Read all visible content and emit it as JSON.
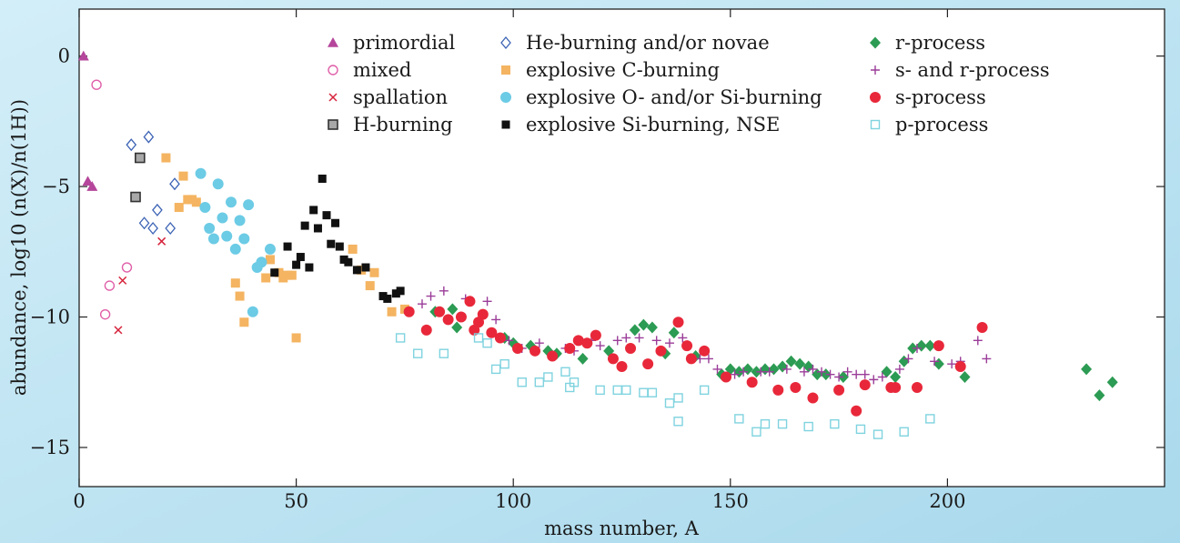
{
  "chart_data": {
    "type": "scatter",
    "title": "",
    "xlabel": "mass number, A",
    "ylabel": "abundance, log10 (n(X)/n(1H))",
    "xlim": [
      0,
      250
    ],
    "ylim": [
      -16.5,
      1.8
    ],
    "x_ticks": [
      0,
      50,
      100,
      150,
      200
    ],
    "y_ticks": [
      0,
      -5,
      -10,
      -15
    ],
    "x_tick_labels": [
      "0",
      "50",
      "100",
      "150",
      "200"
    ],
    "y_tick_labels": [
      "0",
      "−5",
      "−10",
      "−15"
    ],
    "grid": false,
    "legend_position": "top",
    "series": [
      {
        "name": "primordial",
        "marker": "triangle",
        "color": "#b5469b",
        "points": [
          [
            1,
            0
          ],
          [
            2,
            -4.8
          ],
          [
            3,
            -5.0
          ]
        ]
      },
      {
        "name": "mixed",
        "marker": "circle-open",
        "color": "#e05fa8",
        "points": [
          [
            4,
            -1.1
          ],
          [
            6,
            -9.9
          ],
          [
            7,
            -8.8
          ],
          [
            11,
            -8.1
          ]
        ]
      },
      {
        "name": "spallation",
        "marker": "x",
        "color": "#d6233b",
        "points": [
          [
            9,
            -10.5
          ],
          [
            10,
            -8.6
          ],
          [
            19,
            -7.1
          ]
        ]
      },
      {
        "name": "H-burning",
        "marker": "square-open-gray",
        "color": "#333333",
        "points": [
          [
            13,
            -5.4
          ],
          [
            14,
            -3.9
          ]
        ]
      },
      {
        "name": "He-burning and/or novae",
        "marker": "diamond-open",
        "color": "#3c63b5",
        "points": [
          [
            12,
            -3.4
          ],
          [
            15,
            -6.4
          ],
          [
            16,
            -3.1
          ],
          [
            17,
            -6.6
          ],
          [
            18,
            -5.9
          ],
          [
            21,
            -6.6
          ],
          [
            22,
            -4.9
          ]
        ]
      },
      {
        "name": "explosive C-burning",
        "marker": "square",
        "color": "#f4b461",
        "points": [
          [
            20,
            -3.9
          ],
          [
            23,
            -5.8
          ],
          [
            24,
            -4.6
          ],
          [
            25,
            -5.5
          ],
          [
            26,
            -5.5
          ],
          [
            27,
            -5.6
          ],
          [
            36,
            -8.7
          ],
          [
            37,
            -9.2
          ],
          [
            38,
            -10.2
          ],
          [
            43,
            -8.5
          ],
          [
            44,
            -7.8
          ],
          [
            46,
            -8.3
          ],
          [
            47,
            -8.5
          ],
          [
            48,
            -8.4
          ],
          [
            49,
            -8.4
          ],
          [
            50,
            -10.8
          ],
          [
            63,
            -7.4
          ],
          [
            65,
            -8.2
          ],
          [
            67,
            -8.8
          ],
          [
            68,
            -8.3
          ],
          [
            72,
            -9.8
          ],
          [
            75,
            -9.7
          ]
        ]
      },
      {
        "name": "explosive O- and/or Si-burning",
        "marker": "circle",
        "color": "#6ccbe5",
        "points": [
          [
            28,
            -4.5
          ],
          [
            29,
            -5.8
          ],
          [
            30,
            -6.6
          ],
          [
            31,
            -7.0
          ],
          [
            32,
            -4.9
          ],
          [
            33,
            -6.2
          ],
          [
            34,
            -6.9
          ],
          [
            35,
            -5.6
          ],
          [
            36,
            -7.4
          ],
          [
            37,
            -6.3
          ],
          [
            38,
            -7.0
          ],
          [
            39,
            -5.7
          ],
          [
            40,
            -9.8
          ],
          [
            41,
            -8.1
          ],
          [
            42,
            -7.9
          ],
          [
            44,
            -7.4
          ]
        ]
      },
      {
        "name": "explosive Si-burning, NSE",
        "marker": "square-black",
        "color": "#111111",
        "points": [
          [
            45,
            -8.3
          ],
          [
            48,
            -7.3
          ],
          [
            50,
            -8.0
          ],
          [
            51,
            -7.7
          ],
          [
            52,
            -6.5
          ],
          [
            53,
            -8.1
          ],
          [
            54,
            -5.9
          ],
          [
            55,
            -6.6
          ],
          [
            56,
            -4.7
          ],
          [
            57,
            -6.1
          ],
          [
            58,
            -7.2
          ],
          [
            59,
            -6.4
          ],
          [
            60,
            -7.3
          ],
          [
            61,
            -7.8
          ],
          [
            62,
            -7.9
          ],
          [
            64,
            -8.2
          ],
          [
            66,
            -8.1
          ],
          [
            70,
            -9.2
          ],
          [
            71,
            -9.3
          ],
          [
            73,
            -9.1
          ],
          [
            74,
            -9.0
          ]
        ]
      },
      {
        "name": "r-process",
        "marker": "diamond",
        "color": "#2c9b53",
        "points": [
          [
            82,
            -9.8
          ],
          [
            86,
            -9.7
          ],
          [
            87,
            -10.4
          ],
          [
            98,
            -10.8
          ],
          [
            100,
            -11.0
          ],
          [
            104,
            -11.1
          ],
          [
            108,
            -11.3
          ],
          [
            110,
            -11.4
          ],
          [
            116,
            -11.6
          ],
          [
            122,
            -11.3
          ],
          [
            128,
            -10.5
          ],
          [
            130,
            -10.3
          ],
          [
            132,
            -10.4
          ],
          [
            135,
            -11.4
          ],
          [
            137,
            -10.6
          ],
          [
            142,
            -11.5
          ],
          [
            148,
            -12.2
          ],
          [
            150,
            -12.0
          ],
          [
            152,
            -12.1
          ],
          [
            154,
            -12.0
          ],
          [
            156,
            -12.1
          ],
          [
            158,
            -12.0
          ],
          [
            160,
            -12.0
          ],
          [
            162,
            -11.9
          ],
          [
            164,
            -11.7
          ],
          [
            166,
            -11.8
          ],
          [
            168,
            -11.9
          ],
          [
            170,
            -12.2
          ],
          [
            172,
            -12.2
          ],
          [
            176,
            -12.3
          ],
          [
            186,
            -12.1
          ],
          [
            188,
            -12.3
          ],
          [
            190,
            -11.7
          ],
          [
            192,
            -11.2
          ],
          [
            194,
            -11.1
          ],
          [
            196,
            -11.1
          ],
          [
            198,
            -11.8
          ],
          [
            204,
            -12.3
          ],
          [
            232,
            -12.0
          ],
          [
            235,
            -13.0
          ],
          [
            238,
            -12.5
          ]
        ]
      },
      {
        "name": "s- and r-process",
        "marker": "plus",
        "color": "#9b3d99",
        "points": [
          [
            79,
            -9.5
          ],
          [
            81,
            -9.2
          ],
          [
            84,
            -9.0
          ],
          [
            89,
            -9.3
          ],
          [
            94,
            -9.4
          ],
          [
            96,
            -10.1
          ],
          [
            99,
            -10.9
          ],
          [
            102,
            -11.2
          ],
          [
            106,
            -11.0
          ],
          [
            112,
            -11.2
          ],
          [
            114,
            -11.3
          ],
          [
            118,
            -10.9
          ],
          [
            120,
            -11.1
          ],
          [
            124,
            -10.9
          ],
          [
            126,
            -10.8
          ],
          [
            129,
            -10.8
          ],
          [
            133,
            -10.9
          ],
          [
            136,
            -11.0
          ],
          [
            139,
            -10.8
          ],
          [
            143,
            -11.6
          ],
          [
            145,
            -11.6
          ],
          [
            147,
            -12.0
          ],
          [
            151,
            -12.2
          ],
          [
            153,
            -12.1
          ],
          [
            157,
            -12.1
          ],
          [
            159,
            -12.1
          ],
          [
            163,
            -12.0
          ],
          [
            167,
            -12.1
          ],
          [
            169,
            -12.0
          ],
          [
            171,
            -12.1
          ],
          [
            173,
            -12.2
          ],
          [
            175,
            -12.3
          ],
          [
            177,
            -12.1
          ],
          [
            179,
            -12.2
          ],
          [
            181,
            -12.2
          ],
          [
            183,
            -12.4
          ],
          [
            185,
            -12.3
          ],
          [
            189,
            -12.0
          ],
          [
            191,
            -11.6
          ],
          [
            193,
            -11.2
          ],
          [
            197,
            -11.7
          ],
          [
            201,
            -11.8
          ],
          [
            203,
            -11.7
          ],
          [
            207,
            -10.9
          ],
          [
            209,
            -11.6
          ]
        ]
      },
      {
        "name": "s-process",
        "marker": "circle",
        "color": "#e8283a",
        "points": [
          [
            76,
            -9.8
          ],
          [
            80,
            -10.5
          ],
          [
            83,
            -9.8
          ],
          [
            85,
            -10.1
          ],
          [
            88,
            -10.0
          ],
          [
            90,
            -9.4
          ],
          [
            91,
            -10.5
          ],
          [
            92,
            -10.2
          ],
          [
            93,
            -9.9
          ],
          [
            95,
            -10.6
          ],
          [
            97,
            -10.8
          ],
          [
            101,
            -11.2
          ],
          [
            105,
            -11.3
          ],
          [
            109,
            -11.5
          ],
          [
            113,
            -11.2
          ],
          [
            115,
            -10.9
          ],
          [
            117,
            -11.0
          ],
          [
            119,
            -10.7
          ],
          [
            123,
            -11.6
          ],
          [
            125,
            -11.9
          ],
          [
            127,
            -11.2
          ],
          [
            131,
            -11.8
          ],
          [
            134,
            -11.3
          ],
          [
            138,
            -10.2
          ],
          [
            140,
            -11.1
          ],
          [
            141,
            -11.6
          ],
          [
            144,
            -11.3
          ],
          [
            149,
            -12.3
          ],
          [
            155,
            -12.5
          ],
          [
            161,
            -12.8
          ],
          [
            165,
            -12.7
          ],
          [
            169,
            -13.1
          ],
          [
            175,
            -12.8
          ],
          [
            179,
            -13.6
          ],
          [
            181,
            -12.6
          ],
          [
            187,
            -12.7
          ],
          [
            188,
            -12.7
          ],
          [
            193,
            -12.7
          ],
          [
            198,
            -11.1
          ],
          [
            203,
            -11.9
          ],
          [
            208,
            -10.4
          ]
        ]
      },
      {
        "name": "p-process",
        "marker": "square-open",
        "color": "#7fd3df",
        "points": [
          [
            74,
            -10.8
          ],
          [
            78,
            -11.4
          ],
          [
            84,
            -11.4
          ],
          [
            92,
            -10.8
          ],
          [
            94,
            -11.0
          ],
          [
            96,
            -12.0
          ],
          [
            98,
            -11.8
          ],
          [
            102,
            -12.5
          ],
          [
            106,
            -12.5
          ],
          [
            108,
            -12.3
          ],
          [
            112,
            -12.1
          ],
          [
            113,
            -12.7
          ],
          [
            114,
            -12.5
          ],
          [
            120,
            -12.8
          ],
          [
            124,
            -12.8
          ],
          [
            126,
            -12.8
          ],
          [
            130,
            -12.9
          ],
          [
            132,
            -12.9
          ],
          [
            136,
            -13.3
          ],
          [
            138,
            -13.1
          ],
          [
            138,
            -14.0
          ],
          [
            144,
            -12.8
          ],
          [
            152,
            -13.9
          ],
          [
            156,
            -14.4
          ],
          [
            158,
            -14.1
          ],
          [
            162,
            -14.1
          ],
          [
            168,
            -14.2
          ],
          [
            174,
            -14.1
          ],
          [
            180,
            -14.3
          ],
          [
            184,
            -14.5
          ],
          [
            190,
            -14.4
          ],
          [
            196,
            -13.9
          ]
        ]
      }
    ]
  }
}
